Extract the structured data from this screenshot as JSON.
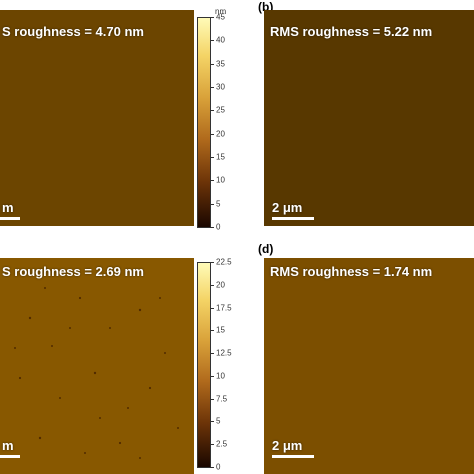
{
  "panels": {
    "a": {
      "letter": "",
      "rms": "S roughness = 4.70 nm",
      "scalebar": "m"
    },
    "b": {
      "letter": "(b)",
      "rms": "RMS roughness = 5.22 nm",
      "scalebar": "2 μm"
    },
    "c": {
      "letter": "",
      "rms": "S roughness = 2.69 nm",
      "scalebar": "m"
    },
    "d": {
      "letter": "(d)",
      "rms": "RMS roughness = 1.74 nm",
      "scalebar": "2 μm"
    }
  },
  "colorbar_top": {
    "unit": "nm",
    "ticks": [
      "45",
      "40",
      "35",
      "30",
      "25",
      "20",
      "15",
      "10",
      "5",
      "0"
    ],
    "min": 0,
    "max": 45
  },
  "colorbar_bottom": {
    "unit": "",
    "ticks": [
      "22.5",
      "20",
      "17.5",
      "15",
      "12.5",
      "10",
      "7.5",
      "5",
      "2.5",
      "0"
    ],
    "min": 0,
    "max": 22.5
  },
  "colors": {
    "afm_dark": "#3a1800",
    "afm_mid": "#b3761f",
    "afm_light": "#fbe98a"
  }
}
